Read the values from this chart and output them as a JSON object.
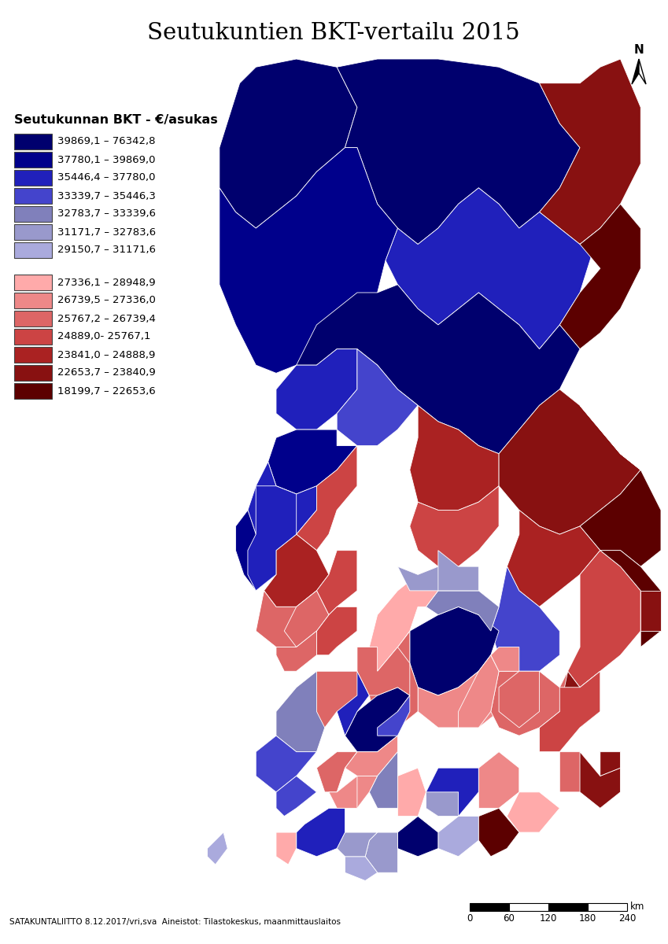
{
  "title": "Seutukuntien BKT-vertailu 2015",
  "legend_title": "Seutukunnan BKT - €/asukas",
  "blue_classes": [
    {
      "label": "39869,1 – 76342,8",
      "color": "#00006E"
    },
    {
      "label": "37780,1 – 39869,0",
      "color": "#00008B"
    },
    {
      "label": "35446,4 – 37780,0",
      "color": "#2020BB"
    },
    {
      "label": "33339,7 – 35446,3",
      "color": "#4444CC"
    },
    {
      "label": "32783,7 – 33339,6",
      "color": "#8080BB"
    },
    {
      "label": "31171,7 – 32783,6",
      "color": "#9999CC"
    },
    {
      "label": "29150,7 – 31171,6",
      "color": "#AAAADD"
    }
  ],
  "red_classes": [
    {
      "label": "27336,1 – 28948,9",
      "color": "#FFAAAA"
    },
    {
      "label": "26739,5 – 27336,0",
      "color": "#EE8888"
    },
    {
      "label": "25767,2 – 26739,4",
      "color": "#DD6666"
    },
    {
      "label": "24889,0- 25767,1",
      "color": "#CC4444"
    },
    {
      "label": "23841,0 – 24888,9",
      "color": "#AA2222"
    },
    {
      "label": "22653,7 – 23840,9",
      "color": "#881111"
    },
    {
      "label": "18199,7 – 22653,6",
      "color": "#5C0000"
    }
  ],
  "attribution": "SATAKUNTALIITTO 8.12.2017/vri,sva  Aineistot: Tilastokeskus, maanmittauslaitos",
  "scale_labels": [
    "0",
    "60",
    "120",
    "180",
    "240"
  ],
  "scale_unit": "km",
  "background_color": "#FFFFFF"
}
